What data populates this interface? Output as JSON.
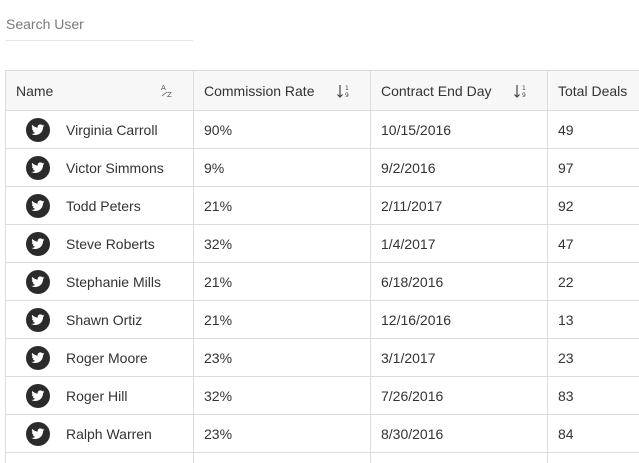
{
  "search": {
    "placeholder": "Search User",
    "value": ""
  },
  "columns": {
    "name": "Name",
    "commission_rate": "Commission Rate",
    "contract_end_day": "Contract End Day",
    "total_deals": "Total Deals"
  },
  "icons": {
    "avatar": "twitter-bird-icon",
    "sort_alpha": "sort-alpha-icon",
    "sort_numeric": "sort-numeric-icon"
  },
  "colors": {
    "avatar_bg": "#2b2b2b",
    "header_bg": "#f7f7f7",
    "grid_line": "#dcdcdc"
  },
  "rows": [
    {
      "name": "Virginia Carroll",
      "rate": "90%",
      "end": "10/15/2016",
      "deals": "49"
    },
    {
      "name": "Victor Simmons",
      "rate": "9%",
      "end": "9/2/2016",
      "deals": "97"
    },
    {
      "name": "Todd Peters",
      "rate": "21%",
      "end": "2/11/2017",
      "deals": "92"
    },
    {
      "name": "Steve Roberts",
      "rate": "32%",
      "end": "1/4/2017",
      "deals": "47"
    },
    {
      "name": "Stephanie Mills",
      "rate": "21%",
      "end": "6/18/2016",
      "deals": "22"
    },
    {
      "name": "Shawn Ortiz",
      "rate": "21%",
      "end": "12/16/2016",
      "deals": "13"
    },
    {
      "name": "Roger Moore",
      "rate": "23%",
      "end": "3/1/2017",
      "deals": "23"
    },
    {
      "name": "Roger Hill",
      "rate": "32%",
      "end": "7/26/2016",
      "deals": "83"
    },
    {
      "name": "Ralph Warren",
      "rate": "23%",
      "end": "8/30/2016",
      "deals": "84"
    }
  ]
}
